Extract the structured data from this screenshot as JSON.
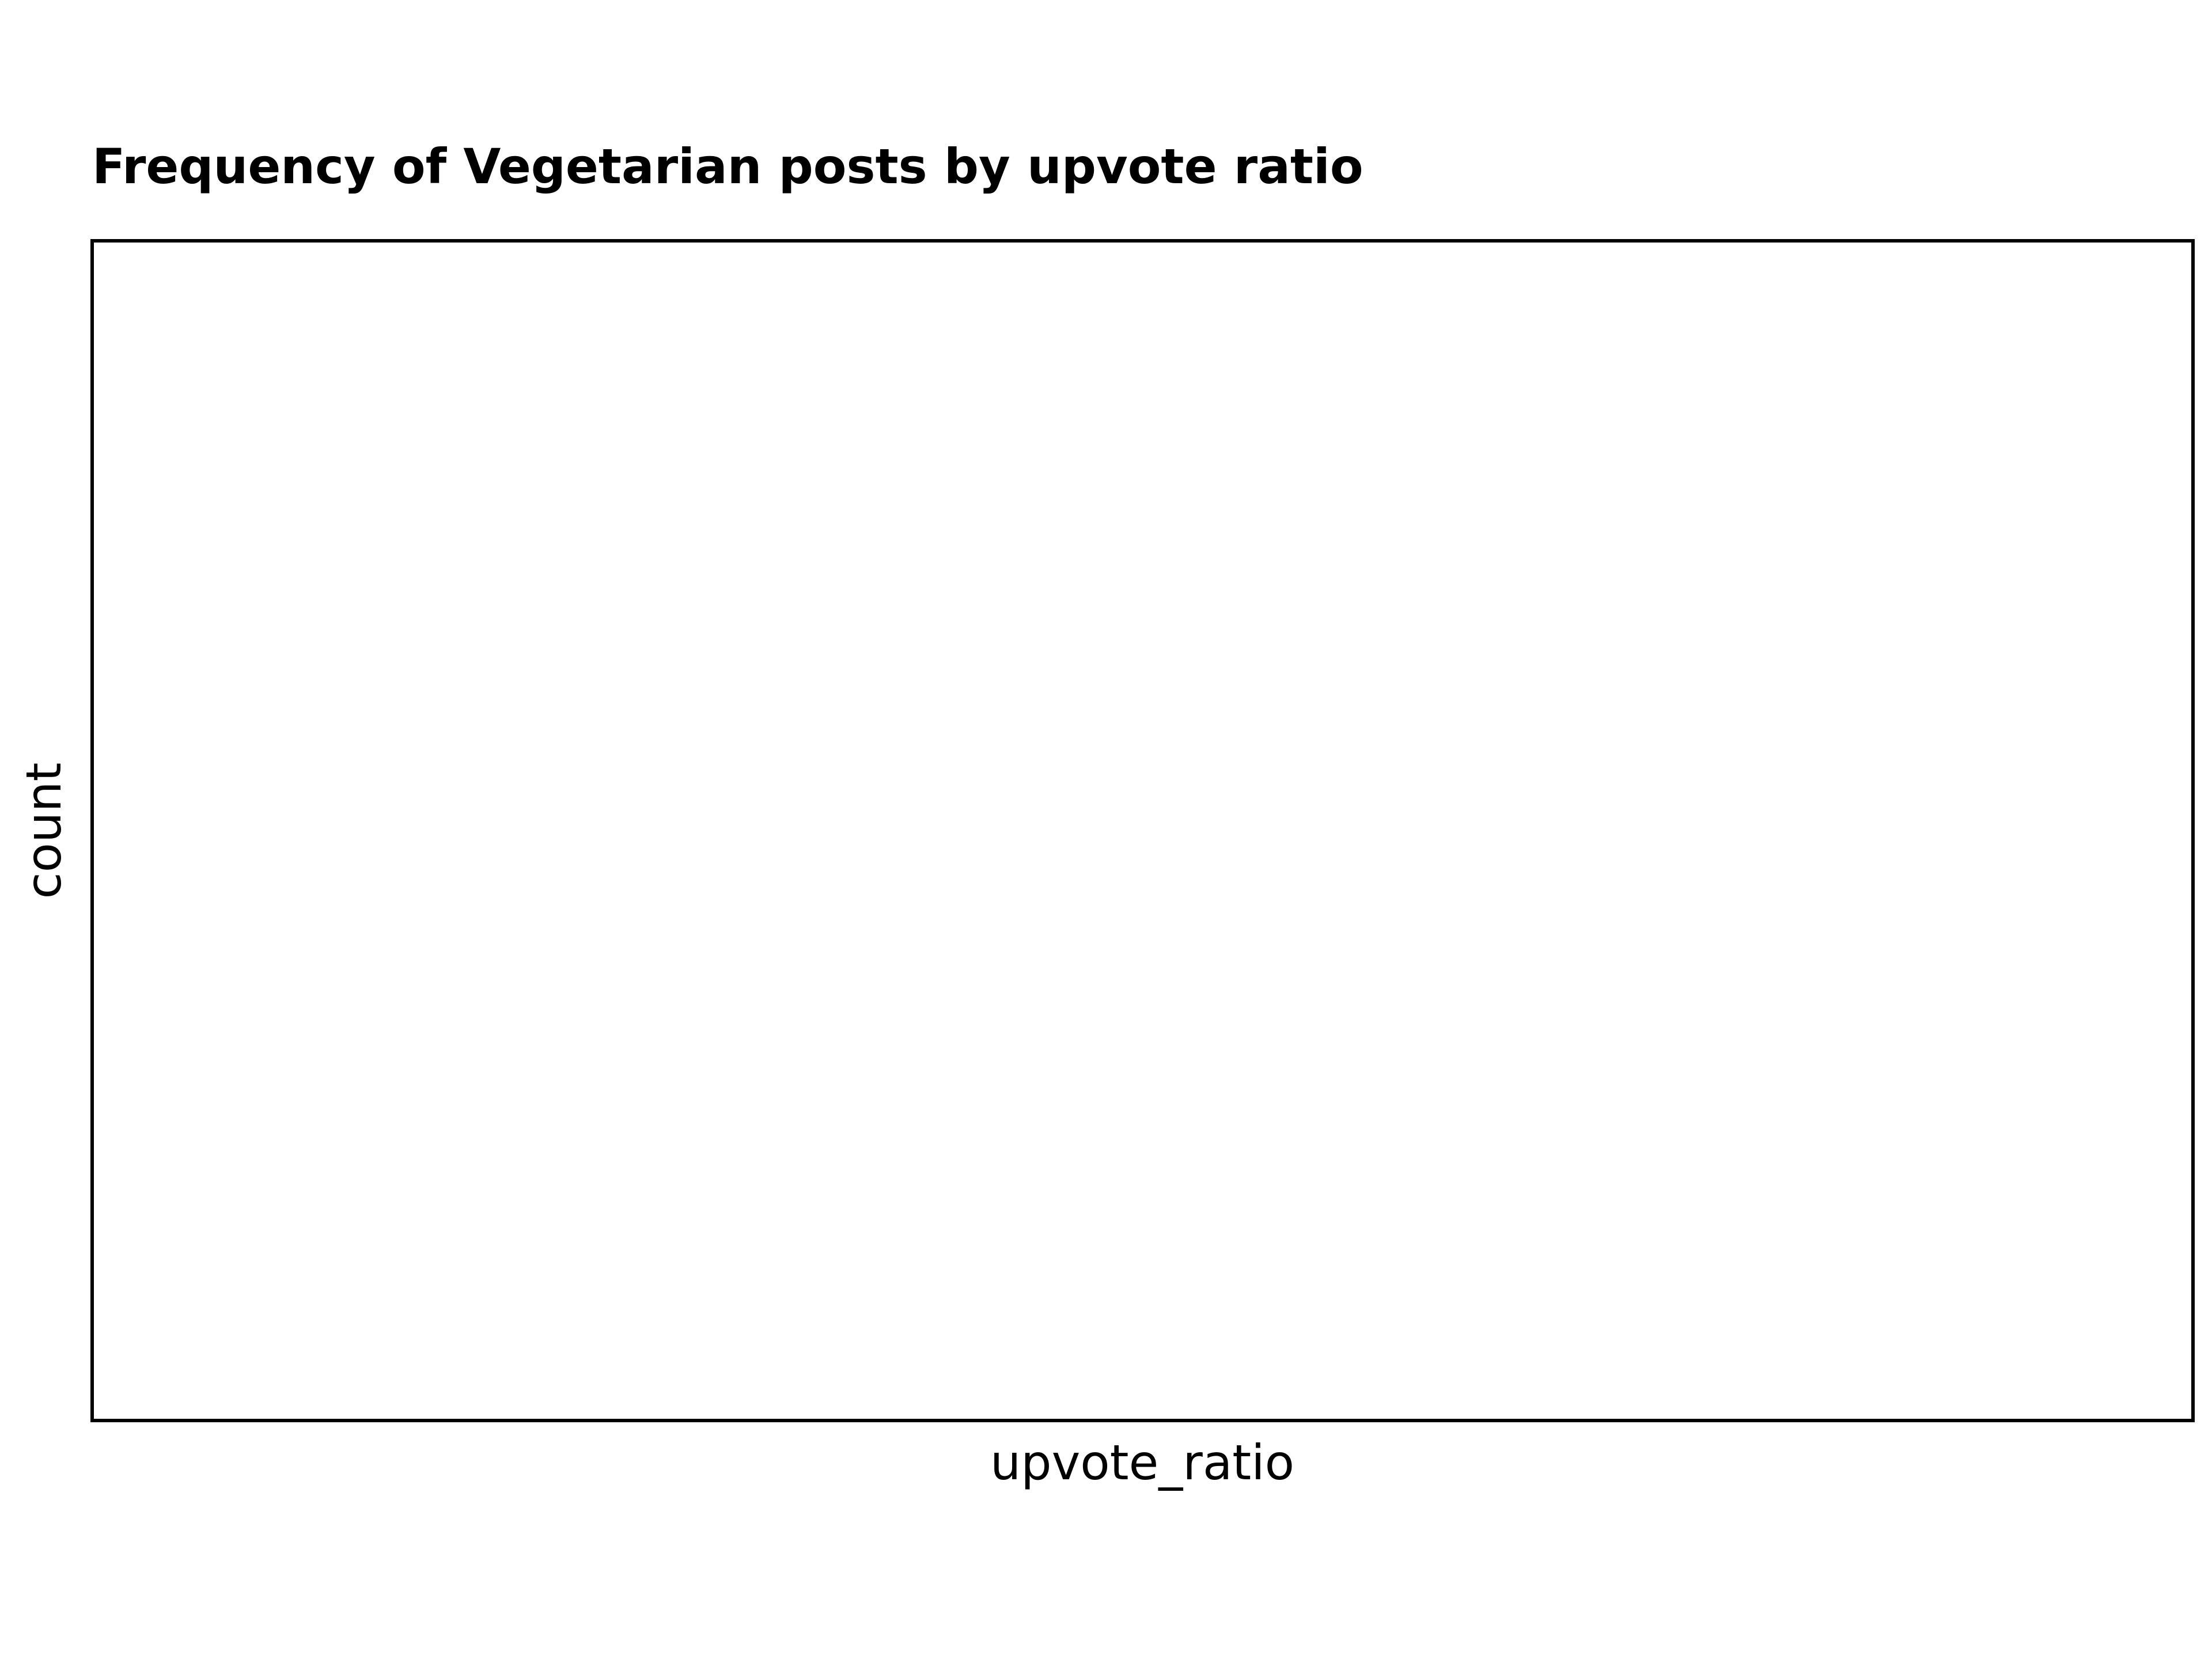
{
  "chart_data": {
    "type": "bar",
    "title": "Frequency of Vegetarian posts by upvote ratio",
    "xlabel": "upvote_ratio",
    "ylabel": "count",
    "categories": [],
    "values": [],
    "grid": false,
    "legend": "none",
    "frame_color": "#000000",
    "background_color": "#ffffff"
  }
}
